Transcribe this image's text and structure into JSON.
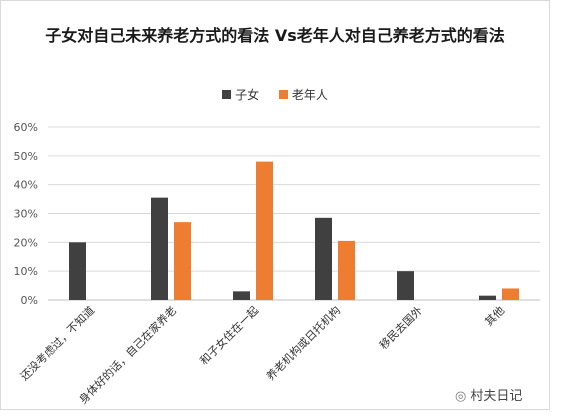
{
  "chart_data": {
    "type": "bar",
    "title": "子女对自己未来养老方式的看法 Vs老年人对自己养老方式的看法",
    "categories": [
      "还没考虑过，不知道",
      "身体好的话，自己在家养老",
      "和子女住在一起",
      "养老机构或日托机构",
      "移民去国外",
      "其他"
    ],
    "series": [
      {
        "name": "子女",
        "color": "#404040",
        "values": [
          0.2,
          0.355,
          0.03,
          0.285,
          0.1,
          0.015
        ]
      },
      {
        "name": "老年人",
        "color": "#ed7d31",
        "values": [
          0.0,
          0.27,
          0.48,
          0.205,
          0.0,
          0.04
        ]
      }
    ],
    "yticks": [
      "0%",
      "10%",
      "20%",
      "30%",
      "40%",
      "50%",
      "60%"
    ],
    "ylim": [
      0,
      0.6
    ],
    "grid": true,
    "legend": "top"
  },
  "watermark": {
    "text": "村夫日记",
    "icon": "wechat-icon"
  }
}
